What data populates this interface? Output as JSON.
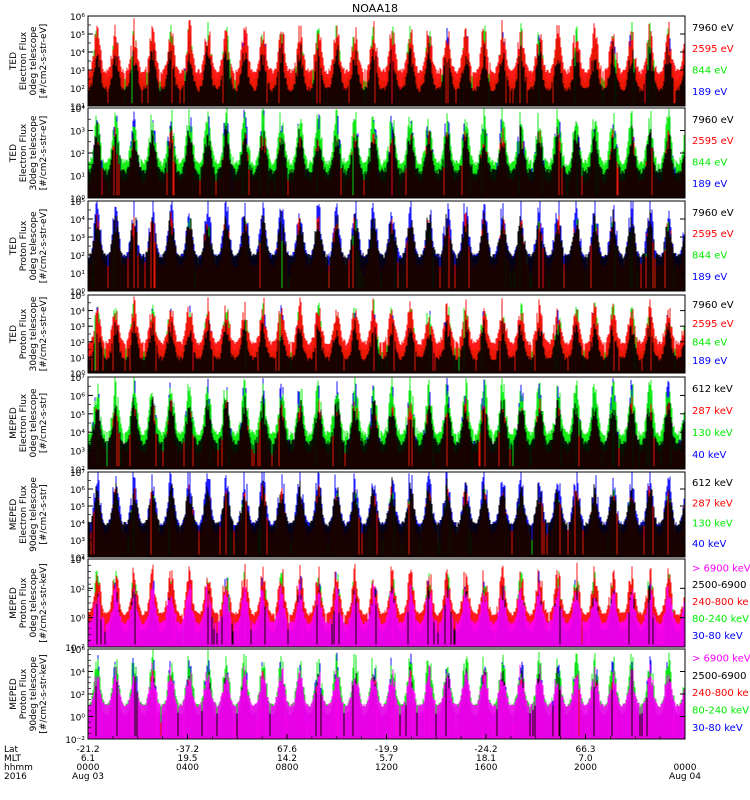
{
  "title": "NOAA18",
  "colors": {
    "black": "#000000",
    "red": "#ff0000",
    "green": "#00ee00",
    "blue": "#0000ff",
    "magenta": "#ff00ff"
  },
  "chart_data": [
    {
      "type": "line",
      "ylabel": [
        "TED",
        "Electron Flux",
        "0deg telescope",
        "[#/cm2-s-str-eV]"
      ],
      "y_scale": "log",
      "ylim_exp": [
        1,
        6
      ],
      "ytick_labels": [
        "10¹",
        "10²",
        "10³",
        "10⁴",
        "10⁵",
        "10⁶"
      ],
      "series": [
        {
          "name": "7960 eV",
          "color": "#000000"
        },
        {
          "name": "2595 eV",
          "color": "#ff0000"
        },
        {
          "name": "844 eV",
          "color": "#00ee00"
        },
        {
          "name": "189 eV",
          "color": "#0000ff"
        }
      ]
    },
    {
      "type": "line",
      "ylabel": [
        "TED",
        "Electron Flux",
        "30deg telescope",
        "[#/cm2-s-str-eV]"
      ],
      "y_scale": "log",
      "ylim_exp": [
        0,
        4
      ],
      "ytick_labels": [
        "10⁰",
        "10¹",
        "10²",
        "10³",
        "10⁴"
      ],
      "series": [
        {
          "name": "7960 eV",
          "color": "#000000"
        },
        {
          "name": "2595 eV",
          "color": "#ff0000"
        },
        {
          "name": "844 eV",
          "color": "#00ee00"
        },
        {
          "name": "189 eV",
          "color": "#0000ff"
        }
      ]
    },
    {
      "type": "line",
      "ylabel": [
        "TED",
        "Proton Flux",
        "0deg telescope",
        "[#/cm2-s-str-eV]"
      ],
      "y_scale": "log",
      "ylim_exp": [
        0,
        5
      ],
      "ytick_labels": [
        "10⁰",
        "10¹",
        "10²",
        "10³",
        "10⁴",
        "10⁵"
      ],
      "series": [
        {
          "name": "7960 eV",
          "color": "#000000"
        },
        {
          "name": "2595 eV",
          "color": "#ff0000"
        },
        {
          "name": "844 eV",
          "color": "#00ee00"
        },
        {
          "name": "189 eV",
          "color": "#0000ff"
        }
      ]
    },
    {
      "type": "line",
      "ylabel": [
        "TED",
        "Proton Flux",
        "30deg telescope",
        "[#/cm2-s-str-eV]"
      ],
      "y_scale": "log",
      "ylim_exp": [
        0,
        5
      ],
      "ytick_labels": [
        "10⁰",
        "10¹",
        "10²",
        "10³",
        "10⁴",
        "10⁵"
      ],
      "series": [
        {
          "name": "7960 eV",
          "color": "#000000"
        },
        {
          "name": "2595 eV",
          "color": "#ff0000"
        },
        {
          "name": "844 eV",
          "color": "#00ee00"
        },
        {
          "name": "189 eV",
          "color": "#0000ff"
        }
      ]
    },
    {
      "type": "line",
      "ylabel": [
        "MEPED",
        "Electron Flux",
        "0deg telescope",
        "[#/cm2-s-str]"
      ],
      "y_scale": "log",
      "ylim_exp": [
        2,
        7
      ],
      "ytick_labels": [
        "10²",
        "10³",
        "10⁴",
        "10⁵",
        "10⁶",
        "10⁷"
      ],
      "series": [
        {
          "name": "612 keV",
          "color": "#000000"
        },
        {
          "name": "287 keV",
          "color": "#ff0000"
        },
        {
          "name": "130 keV",
          "color": "#00ee00"
        },
        {
          "name": "40 keV",
          "color": "#0000ff"
        }
      ]
    },
    {
      "type": "line",
      "ylabel": [
        "MEPED",
        "Electron Flux",
        "90deg telescope",
        "[#/cm2-s-str]"
      ],
      "y_scale": "log",
      "ylim_exp": [
        2,
        7
      ],
      "ytick_labels": [
        "10²",
        "10³",
        "10⁴",
        "10⁵",
        "10⁶",
        "10⁷"
      ],
      "series": [
        {
          "name": "612 keV",
          "color": "#000000"
        },
        {
          "name": "287 keV",
          "color": "#ff0000"
        },
        {
          "name": "130 keV",
          "color": "#00ee00"
        },
        {
          "name": "40 keV",
          "color": "#0000ff"
        }
      ]
    },
    {
      "type": "line",
      "ylabel": [
        "MEPED",
        "Proton Flux",
        "0deg telescope",
        "[#/cm2-s-str-keV]"
      ],
      "y_scale": "log",
      "ylim_exp": [
        -2,
        5
      ],
      "ytick_labels": [
        "10⁻²",
        "10⁰",
        "10²",
        "10⁴"
      ],
      "series": [
        {
          "name": "> 6900 keV",
          "color": "#ff00ff"
        },
        {
          "name": "2500-6900",
          "color": "#000000"
        },
        {
          "name": "240-800 ke",
          "color": "#ff0000"
        },
        {
          "name": "80-240 keV",
          "color": "#00ee00"
        },
        {
          "name": "30-80 keV",
          "color": "#0000ff"
        }
      ]
    },
    {
      "type": "line",
      "ylabel": [
        "MEPED",
        "Proton Flux",
        "90deg telescope",
        "[#/cm2-s-str-keV]"
      ],
      "y_scale": "log",
      "ylim_exp": [
        -2,
        6
      ],
      "ytick_labels": [
        "10⁻²",
        "10⁰",
        "10²",
        "10⁴",
        "10⁶"
      ],
      "series": [
        {
          "name": "> 6900 keV",
          "color": "#ff00ff"
        },
        {
          "name": "2500-6900",
          "color": "#000000"
        },
        {
          "name": "240-800 ke",
          "color": "#ff0000"
        },
        {
          "name": "80-240 keV",
          "color": "#00ee00"
        },
        {
          "name": "30-80 keV",
          "color": "#0000ff"
        }
      ]
    }
  ],
  "x_axis": {
    "row_labels": [
      "Lat",
      "MLT",
      "hhmm",
      "2016"
    ],
    "ticks": [
      {
        "lat": "-21.2",
        "mlt": "6.1",
        "hhmm": "0000",
        "date": "Aug 03"
      },
      {
        "lat": "-37.2",
        "mlt": "19.5",
        "hhmm": "0400",
        "date": ""
      },
      {
        "lat": "67.6",
        "mlt": "14.2",
        "hhmm": "0800",
        "date": ""
      },
      {
        "lat": "-19.9",
        "mlt": "5.7",
        "hhmm": "1200",
        "date": ""
      },
      {
        "lat": "-24.2",
        "mlt": "18.1",
        "hhmm": "1600",
        "date": ""
      },
      {
        "lat": "66.3",
        "mlt": "7.0",
        "hhmm": "2000",
        "date": ""
      },
      {
        "lat": "",
        "mlt": "",
        "hhmm": "0000",
        "date": "Aug 04"
      }
    ]
  }
}
